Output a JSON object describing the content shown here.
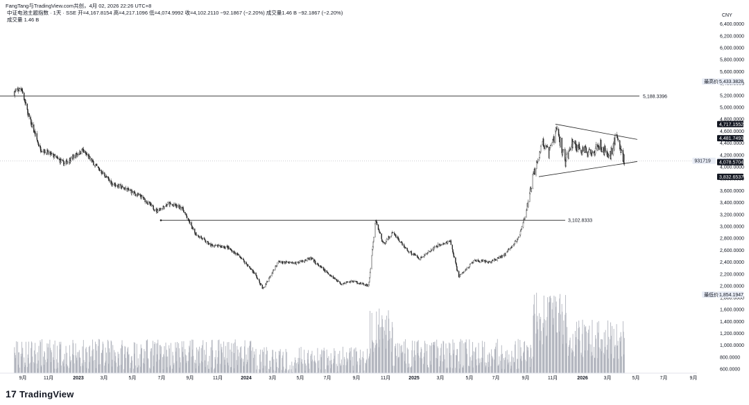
{
  "header": {
    "line1": "FangTang与TradingView.com共创，4月 02, 2026 22:26 UTC+8",
    "line2": "中证电池主题指数 · 1天 · SSE  开=4,167.8154  高=4,217.1096  低=4,074.9992  收=4,102.2110  −92.1867 (−2.20%)  成交量1.46 B  −92.1867 (−2.20%)",
    "line3": "成交量  1.46 B"
  },
  "brand": {
    "logo_mark": "17",
    "logo_text": "TradingView"
  },
  "chart_data": {
    "type": "candlestick",
    "currency": "CNY",
    "y_ticks": [
      600000,
      800000,
      1000000,
      1200000,
      1400000,
      1600000,
      1800000,
      2000000,
      2200000,
      2400000,
      2600000,
      2800000,
      3000000,
      3200000,
      3400000,
      3600000,
      3800000,
      4000000,
      4200000,
      4400000,
      4600000,
      4800000,
      5000000,
      5200000,
      5400000,
      5600000,
      5800000,
      6000000,
      6200000,
      6400000
    ],
    "y_tick_labels": [
      "600.0000",
      "800.0000",
      "1,000.0000",
      "1,200.0000",
      "1,400.0000",
      "1,600.0000",
      "1,800.0000",
      "2,000.0000",
      "2,200.0000",
      "2,400.0000",
      "2,600.0000",
      "2,800.0000",
      "3,000.0000",
      "3,200.0000",
      "3,400.0000",
      "3,600.0000",
      "3,800.0000",
      "4,000.0000",
      "4,200.0000",
      "4,400.0000",
      "4,600.0000",
      "4,800.0000",
      "5,000.0000",
      "5,200.0000",
      "5,400.0000",
      "5,600.0000",
      "5,800.0000",
      "6,000.0000",
      "6,200.0000",
      "6,400.0000"
    ],
    "x_ticks": [
      "9月",
      "11月",
      "2023",
      "3月",
      "5月",
      "7月",
      "9月",
      "11月",
      "2024",
      "3月",
      "5月",
      "7月",
      "9月",
      "11月",
      "2025",
      "3月",
      "5月",
      "7月",
      "9月",
      "11月",
      "2026",
      "3月",
      "5月",
      "7月",
      "9月"
    ],
    "price_path": [
      {
        "date": "2022-08-15",
        "price": 5250
      },
      {
        "date": "2022-08-30",
        "price": 5330
      },
      {
        "date": "2022-09-15",
        "price": 4850
      },
      {
        "date": "2022-10-10",
        "price": 4300
      },
      {
        "date": "2022-11-05",
        "price": 4200
      },
      {
        "date": "2022-12-01",
        "price": 4050
      },
      {
        "date": "2023-01-10",
        "price": 4280
      },
      {
        "date": "2023-02-10",
        "price": 4000
      },
      {
        "date": "2023-03-15",
        "price": 3720
      },
      {
        "date": "2023-04-20",
        "price": 3610
      },
      {
        "date": "2023-05-20",
        "price": 3480
      },
      {
        "date": "2023-06-20",
        "price": 3260
      },
      {
        "date": "2023-07-15",
        "price": 3380
      },
      {
        "date": "2023-08-15",
        "price": 3310
      },
      {
        "date": "2023-09-10",
        "price": 2900
      },
      {
        "date": "2023-10-15",
        "price": 2680
      },
      {
        "date": "2023-11-20",
        "price": 2650
      },
      {
        "date": "2023-12-20",
        "price": 2480
      },
      {
        "date": "2024-01-20",
        "price": 2200
      },
      {
        "date": "2024-02-06",
        "price": 1950
      },
      {
        "date": "2024-03-10",
        "price": 2400
      },
      {
        "date": "2024-04-15",
        "price": 2380
      },
      {
        "date": "2024-05-20",
        "price": 2460
      },
      {
        "date": "2024-06-20",
        "price": 2250
      },
      {
        "date": "2024-07-25",
        "price": 2040
      },
      {
        "date": "2024-08-20",
        "price": 2080
      },
      {
        "date": "2024-09-23",
        "price": 2000
      },
      {
        "date": "2024-10-08",
        "price": 3100
      },
      {
        "date": "2024-10-25",
        "price": 2700
      },
      {
        "date": "2024-11-15",
        "price": 2900
      },
      {
        "date": "2024-12-15",
        "price": 2600
      },
      {
        "date": "2025-01-13",
        "price": 2460
      },
      {
        "date": "2025-02-20",
        "price": 2680
      },
      {
        "date": "2025-03-20",
        "price": 2740
      },
      {
        "date": "2025-04-07",
        "price": 2150
      },
      {
        "date": "2025-05-10",
        "price": 2420
      },
      {
        "date": "2025-06-15",
        "price": 2400
      },
      {
        "date": "2025-07-15",
        "price": 2520
      },
      {
        "date": "2025-08-15",
        "price": 2800
      },
      {
        "date": "2025-09-01",
        "price": 3250
      },
      {
        "date": "2025-09-20",
        "price": 4000
      },
      {
        "date": "2025-10-05",
        "price": 4430
      },
      {
        "date": "2025-10-20",
        "price": 4200
      },
      {
        "date": "2025-11-05",
        "price": 4640
      },
      {
        "date": "2025-11-25",
        "price": 4100
      },
      {
        "date": "2025-12-10",
        "price": 4410
      },
      {
        "date": "2026-01-10",
        "price": 4220
      },
      {
        "date": "2026-02-05",
        "price": 4380
      },
      {
        "date": "2026-03-01",
        "price": 4180
      },
      {
        "date": "2026-03-15",
        "price": 4520
      },
      {
        "date": "2026-04-02",
        "price": 4102
      }
    ],
    "horizontal_lines": [
      {
        "label": "5,188.3396",
        "value": 5188.3396
      },
      {
        "label": "3,102.8333",
        "value": 3102.8333
      }
    ],
    "triangle": {
      "upper": {
        "from": {
          "date": "2025-11-03",
          "price": 4717
        },
        "to": {
          "date": "2026-04-30",
          "price": 4460
        }
      },
      "lower": {
        "from": {
          "date": "2025-09-28",
          "price": 3835
        },
        "to": {
          "date": "2026-04-30",
          "price": 4090
        }
      }
    },
    "price_tags": [
      {
        "label": "5,433.3828",
        "kind": "highest",
        "caption": "最高价"
      },
      {
        "label": "4,717.1552",
        "kind": "dark"
      },
      {
        "label": "4,481.7493",
        "kind": "dark"
      },
      {
        "label": "4,102.2110",
        "kind": "light",
        "caption": "931719"
      },
      {
        "label": "4,078.5704",
        "kind": "dark"
      },
      {
        "label": "3,832.6537",
        "kind": "dark"
      },
      {
        "label": "1,854.1947",
        "kind": "lowest",
        "caption": "最低价"
      }
    ],
    "current_price": 4102.211,
    "volume_note": "volume bars scale 0–2,000,000 axis share"
  }
}
